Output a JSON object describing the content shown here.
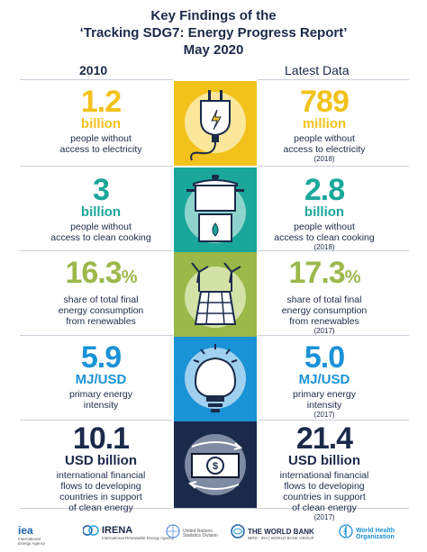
{
  "title": {
    "line1": "Key Findings of the",
    "line2": "‘Tracking SDG7: Energy Progress Report’",
    "line3": "May 2020"
  },
  "columns": {
    "left": "2010",
    "right": "Latest Data"
  },
  "rows": [
    {
      "left": {
        "value": "1.2",
        "pct": "",
        "unit": "billion",
        "desc1": "people without",
        "desc2": "access to electricity",
        "desc3": "",
        "year": ""
      },
      "right": {
        "value": "789",
        "pct": "",
        "unit": "million",
        "desc1": "people without",
        "desc2": "access to electricity",
        "desc3": "",
        "year": "(2018)"
      },
      "icon": "plug-icon",
      "color": "#f2c21b"
    },
    {
      "left": {
        "value": "3",
        "pct": "",
        "unit": "billion",
        "desc1": "people without",
        "desc2": "access to clean cooking",
        "desc3": "",
        "year": ""
      },
      "right": {
        "value": "2.8",
        "pct": "",
        "unit": "billion",
        "desc1": "people without",
        "desc2": "access to clean cooking",
        "desc3": "",
        "year": "(2018)"
      },
      "icon": "cooking-pot-icon",
      "color": "#1aa79a"
    },
    {
      "left": {
        "value": "16.3",
        "pct": "%",
        "unit": "",
        "desc1": "share of total final",
        "desc2": "energy consumption",
        "desc3": "from renewables",
        "year": ""
      },
      "right": {
        "value": "17.3",
        "pct": "%",
        "unit": "",
        "desc1": "share of total final",
        "desc2": "energy consumption",
        "desc3": "from renewables",
        "year": "(2017)"
      },
      "icon": "solar-wind-icon",
      "color": "#9bb84a"
    },
    {
      "left": {
        "value": "5.9",
        "pct": "",
        "unit": "MJ/USD",
        "desc1": "primary energy",
        "desc2": "intensity",
        "desc3": "",
        "year": ""
      },
      "right": {
        "value": "5.0",
        "pct": "",
        "unit": "MJ/USD",
        "desc1": "primary energy",
        "desc2": "intensity",
        "desc3": "",
        "year": "(2017)"
      },
      "icon": "light-bulb-icon",
      "color": "#1a92d6"
    },
    {
      "left": {
        "value": "10.1",
        "pct": "",
        "unit": "USD billion",
        "desc1": "international financial",
        "desc2": "flows to developing",
        "desc3": "countries in support",
        "desc4": "of clean energy",
        "year": ""
      },
      "right": {
        "value": "21.4",
        "pct": "",
        "unit": "USD billion",
        "desc1": "international financial",
        "desc2": "flows to developing",
        "desc3": "countries in support",
        "desc4": "of clean energy",
        "year": "(2017)"
      },
      "icon": "money-flow-icon",
      "color": "#1b2a4a"
    }
  ],
  "logos": {
    "iea": {
      "name": "iea",
      "sub1": "International",
      "sub2": "Energy Agency"
    },
    "irena": {
      "name": "IRENA",
      "sub1": "International Renewable Energy Agency"
    },
    "un": {
      "sub1": "United Nations",
      "sub2": "Statistics Division"
    },
    "worldbank": {
      "name": "THE WORLD BANK",
      "sub1": "IBRD · IDA | WORLD BANK GROUP"
    },
    "who": {
      "name1": "World Health",
      "name2": "Organization"
    }
  }
}
